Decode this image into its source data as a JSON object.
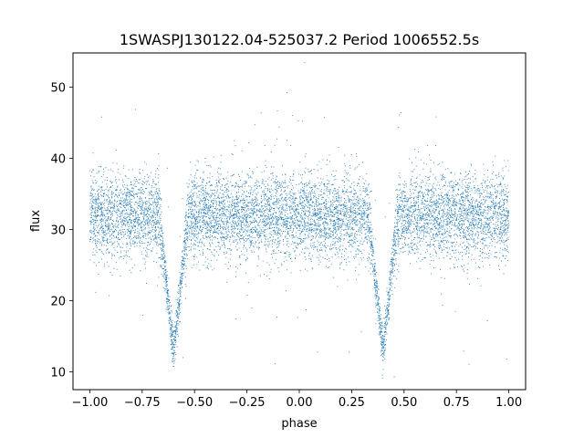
{
  "chart_data": {
    "type": "scatter",
    "title": "1SWASPJ130122.04-525037.2 Period 1006552.5s",
    "xlabel": "phase",
    "ylabel": "flux",
    "xlim": [
      -1.08,
      1.08
    ],
    "ylim": [
      7.5,
      54.8
    ],
    "xticks": [
      -1.0,
      -0.75,
      -0.5,
      -0.25,
      0.0,
      0.25,
      0.5,
      0.75,
      1.0
    ],
    "xtick_labels": [
      "−1.00",
      "−0.75",
      "−0.50",
      "−0.25",
      "0.00",
      "0.25",
      "0.50",
      "0.75",
      "1.00"
    ],
    "yticks": [
      10,
      20,
      30,
      40,
      50
    ],
    "ytick_labels": [
      "10",
      "20",
      "30",
      "40",
      "50"
    ],
    "grid": false,
    "legend": "none",
    "point_color": "#1f77b4",
    "baseline_flux": 32,
    "baseline_scatter": 3,
    "primary_eclipse": {
      "phase": -0.6,
      "min_flux": 13,
      "half_width": 0.07
    },
    "secondary_eclipse": {
      "phase": 0.4,
      "min_flux": 13,
      "half_width": 0.07
    },
    "phase_range": [
      -1.0,
      1.0
    ]
  }
}
